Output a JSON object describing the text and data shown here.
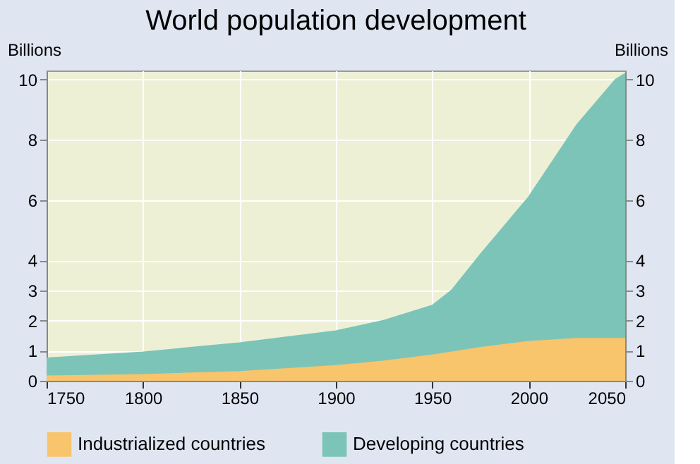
{
  "chart_data": {
    "type": "area",
    "title": "World population development",
    "ylabel": "Billions",
    "y2label": "Billions",
    "x": [
      1750,
      1800,
      1850,
      1900,
      1925,
      1950,
      1960,
      1975,
      2000,
      2025,
      2045,
      2050
    ],
    "stacked": true,
    "series": [
      {
        "name": "Industrialized countries",
        "color": "#f8c46c",
        "values": [
          0.15,
          0.2,
          0.3,
          0.5,
          0.65,
          0.85,
          0.95,
          1.1,
          1.3,
          1.4,
          1.4,
          1.4
        ]
      },
      {
        "name": "Developing countries",
        "color": "#7cc4b8",
        "values": [
          0.6,
          0.75,
          0.95,
          1.15,
          1.35,
          1.65,
          2.05,
          3.1,
          4.8,
          7.1,
          8.6,
          8.8
        ]
      }
    ],
    "xlim": [
      1750,
      2050
    ],
    "xticks": [
      1750,
      1800,
      1850,
      1900,
      1950,
      2000,
      2050
    ],
    "ylim": [
      0,
      10.3
    ],
    "yticks": [
      0,
      1,
      2,
      3,
      4,
      6,
      8,
      10
    ],
    "y2lim": [
      0,
      10.3
    ],
    "y2ticks": [
      0,
      1,
      2,
      3,
      4,
      6,
      8,
      10
    ],
    "grid": true,
    "legend": "bottom"
  }
}
